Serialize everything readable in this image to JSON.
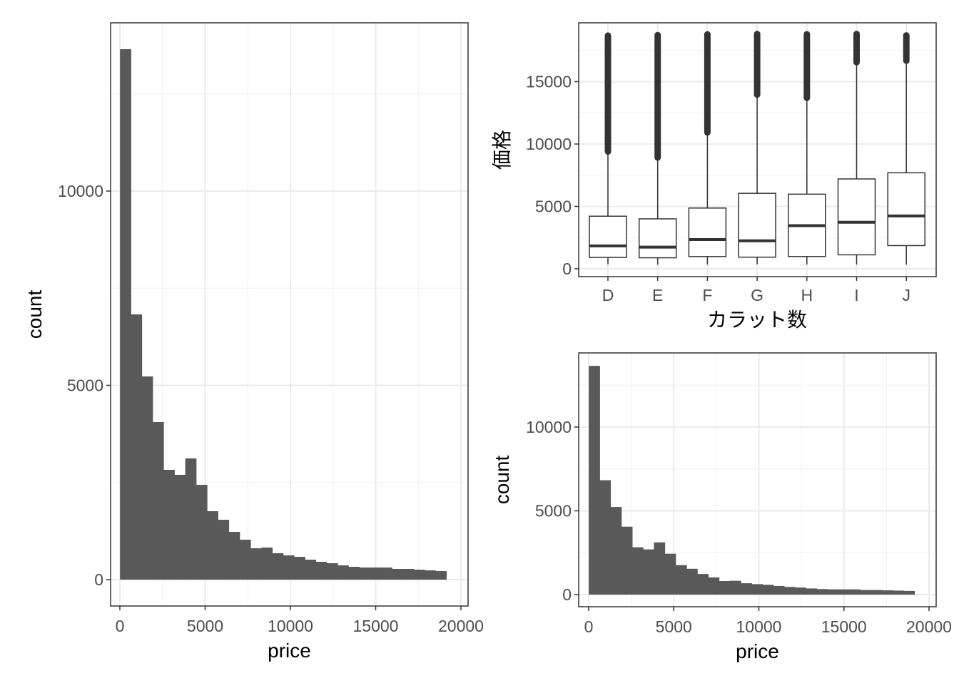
{
  "chart_data": [
    {
      "type": "bar",
      "subtype": "histogram",
      "xlabel": "price",
      "ylabel": "count",
      "xlim": [
        0,
        20000
      ],
      "ylim": [
        0,
        13651
      ],
      "xticks": [
        0,
        5000,
        10000,
        15000,
        20000
      ],
      "xtick_labels": [
        "0",
        "5000",
        "10000",
        "15000",
        "20000"
      ],
      "yticks": [
        0,
        5000,
        10000
      ],
      "ytick_labels": [
        "0",
        "5000",
        "10000"
      ],
      "bin_range": [
        326,
        18823
      ],
      "values": [
        13651,
        6826,
        5229,
        4055,
        2826,
        2697,
        3119,
        2440,
        1761,
        1541,
        1229,
        1028,
        807,
        826,
        679,
        624,
        587,
        514,
        459,
        422,
        367,
        330,
        312,
        312,
        312,
        275,
        275,
        257,
        239,
        220
      ],
      "bar_color": "#595959",
      "grid": true
    },
    {
      "type": "box",
      "xlabel": "カラット数",
      "ylabel": "価格",
      "categories": [
        "D",
        "E",
        "F",
        "G",
        "H",
        "I",
        "J"
      ],
      "yticks": [
        0,
        5000,
        10000,
        15000
      ],
      "ytick_labels": [
        "0",
        "5000",
        "10000",
        "15000"
      ],
      "boxes": [
        {
          "min": 357,
          "q1": 911,
          "median": 1838,
          "q3": 4214,
          "whisker_high": 9168,
          "max": 18693
        },
        {
          "min": 326,
          "q1": 882,
          "median": 1739,
          "q3": 4003,
          "whisker_high": 8685,
          "max": 18731
        },
        {
          "min": 342,
          "q1": 982,
          "median": 2344,
          "q3": 4868,
          "whisker_high": 10697,
          "max": 18791
        },
        {
          "min": 354,
          "q1": 931,
          "median": 2242,
          "q3": 6048,
          "whisker_high": 13724,
          "max": 18818
        },
        {
          "min": 337,
          "q1": 984,
          "median": 3460,
          "q3": 5980,
          "whisker_high": 13474,
          "max": 18803
        },
        {
          "min": 334,
          "q1": 1120,
          "median": 3730,
          "q3": 7202,
          "whisker_high": 16325,
          "max": 18823
        },
        {
          "min": 335,
          "q1": 1860,
          "median": 4234,
          "q3": 7695,
          "whisker_high": 16447,
          "max": 18710
        }
      ],
      "grid": true
    },
    {
      "type": "bar",
      "subtype": "histogram",
      "xlabel": "price",
      "ylabel": "count",
      "xlim": [
        0,
        20000
      ],
      "xticks": [
        0,
        5000,
        10000,
        15000,
        20000
      ],
      "xtick_labels": [
        "0",
        "5000",
        "10000",
        "15000",
        "20000"
      ],
      "yticks": [
        0,
        5000,
        10000
      ],
      "ytick_labels": [
        "0",
        "5000",
        "10000"
      ],
      "bin_range": [
        326,
        18823
      ],
      "values": [
        13651,
        6826,
        5229,
        4055,
        2826,
        2697,
        3119,
        2440,
        1761,
        1541,
        1229,
        1028,
        807,
        826,
        679,
        624,
        587,
        514,
        459,
        422,
        367,
        330,
        312,
        312,
        312,
        275,
        275,
        257,
        239,
        220
      ],
      "bar_color": "#595959",
      "grid": true
    }
  ]
}
